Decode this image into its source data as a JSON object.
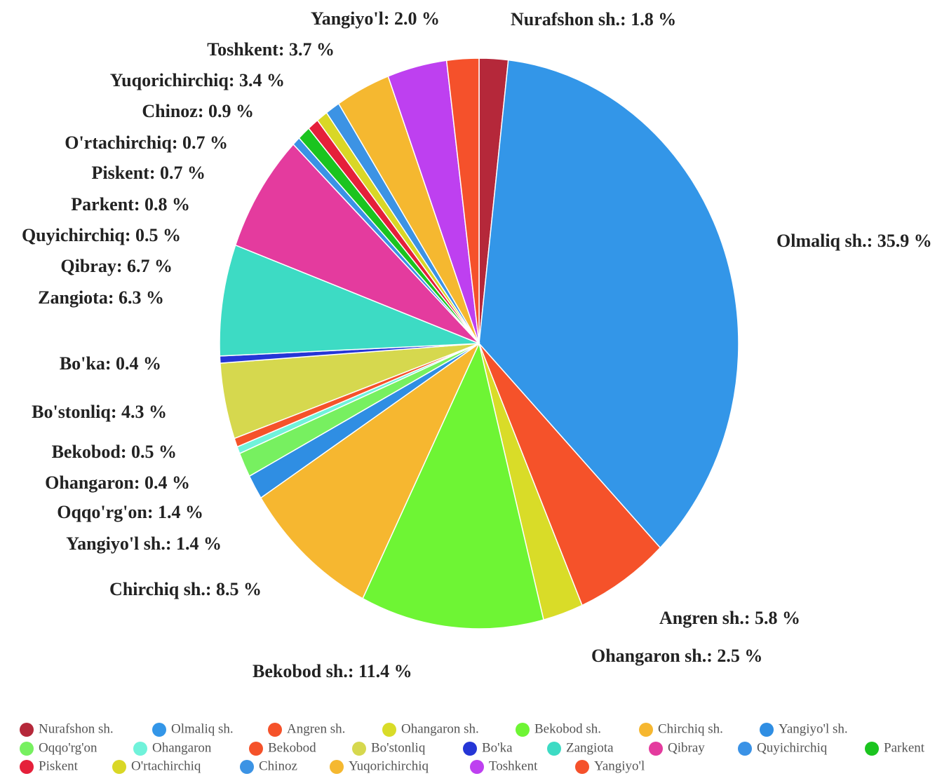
{
  "chart_data": {
    "type": "pie",
    "categories": [
      "Nurafshon sh.",
      "Olmaliq sh.",
      "Angren sh.",
      "Ohangaron sh.",
      "Bekobod sh.",
      "Chirchiq sh.",
      "Yangiyo'l sh.",
      "Oqqo'rg'on",
      "Ohangaron",
      "Bekobod",
      "Bo'stonliq",
      "Bo'ka",
      "Zangiota",
      "Qibray",
      "Quyichirchiq",
      "Parkent",
      "Piskent",
      "O'rtachirchiq",
      "Chinoz",
      "Yuqorichirchiq",
      "Toshkent",
      "Yangiyo'l"
    ],
    "values": [
      1.8,
      35.9,
      5.8,
      2.5,
      11.4,
      8.5,
      1.4,
      1.4,
      0.4,
      0.5,
      4.3,
      0.4,
      6.3,
      6.7,
      0.5,
      0.8,
      0.7,
      0.7,
      0.9,
      3.4,
      3.7,
      2.0
    ],
    "value_labels": [
      "Nurafshon sh.: 1.8 %",
      "Olmaliq sh.: 35.9 %",
      "Angren sh.: 5.8 %",
      "Ohangaron sh.: 2.5 %",
      "Bekobod sh.: 11.4 %",
      "Chirchiq sh.: 8.5 %",
      "Yangiyo'l sh.: 1.4 %",
      "Oqqo'rg'on: 1.4 %",
      "Ohangaron: 0.4 %",
      "Bekobod: 0.5 %",
      "Bo'stonliq: 4.3 %",
      "Bo'ka: 0.4 %",
      "Zangiota: 6.3 %",
      "Qibray: 6.7 %",
      "Quyichirchiq: 0.5 %",
      "Parkent: 0.8 %",
      "Piskent: 0.7 %",
      "O'rtachirchiq: 0.7 %",
      "Chinoz: 0.9 %",
      "Yuqorichirchiq: 3.4 %",
      "Toshkent: 3.7 %",
      "Yangiyo'l: 2.0 %"
    ],
    "colors": [
      "#b5283a",
      "#3396e8",
      "#f5522a",
      "#d9dc28",
      "#6ef534",
      "#f6b730",
      "#2f8ee3",
      "#77f060",
      "#70f2da",
      "#f5522a",
      "#d6d84e",
      "#2536d6",
      "#3ddbc4",
      "#e43b9e",
      "#3a92e6",
      "#1bc41f",
      "#e5203a",
      "#d9d726",
      "#3c93e4",
      "#f5b830",
      "#be40f0",
      "#f5512b"
    ]
  }
}
